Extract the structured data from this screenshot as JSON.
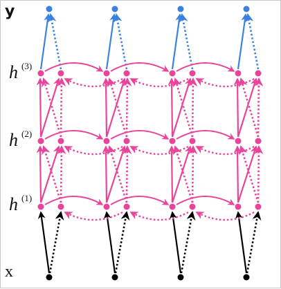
{
  "labels": {
    "output": "y",
    "input": "x",
    "hidden": [
      {
        "base": "h",
        "sup": "(3)"
      },
      {
        "base": "h",
        "sup": "(2)"
      },
      {
        "base": "h",
        "sup": "(1)"
      }
    ]
  },
  "colors": {
    "output": "#3b82e0",
    "hidden": "#e8459a",
    "input": "#000000"
  }
}
